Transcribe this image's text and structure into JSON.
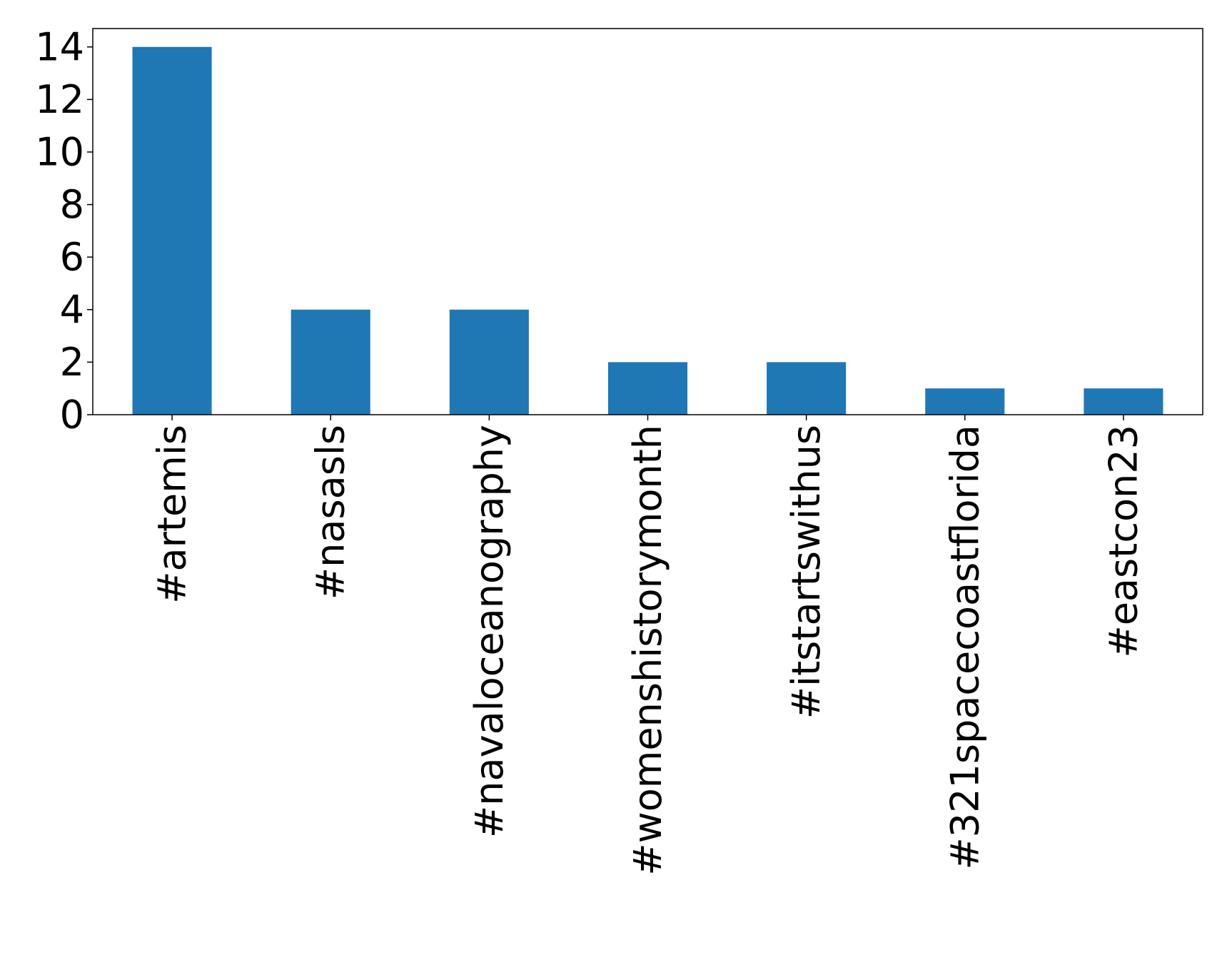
{
  "chart_data": {
    "type": "bar",
    "title": "",
    "xlabel": "",
    "ylabel": "",
    "categories": [
      "#artemis",
      "#nasasls",
      "#navaloceanography",
      "#womenshistorymonth",
      "#itstartswithus",
      "#321spacecoastflorida",
      "#eastcon23"
    ],
    "values": [
      14,
      4,
      4,
      2,
      2,
      1,
      1
    ],
    "ylim": [
      0,
      14.7
    ],
    "yticks": [
      0,
      2,
      4,
      6,
      8,
      10,
      12,
      14
    ],
    "bar_color": "#1f77b4",
    "grid": false,
    "legend": "none"
  }
}
